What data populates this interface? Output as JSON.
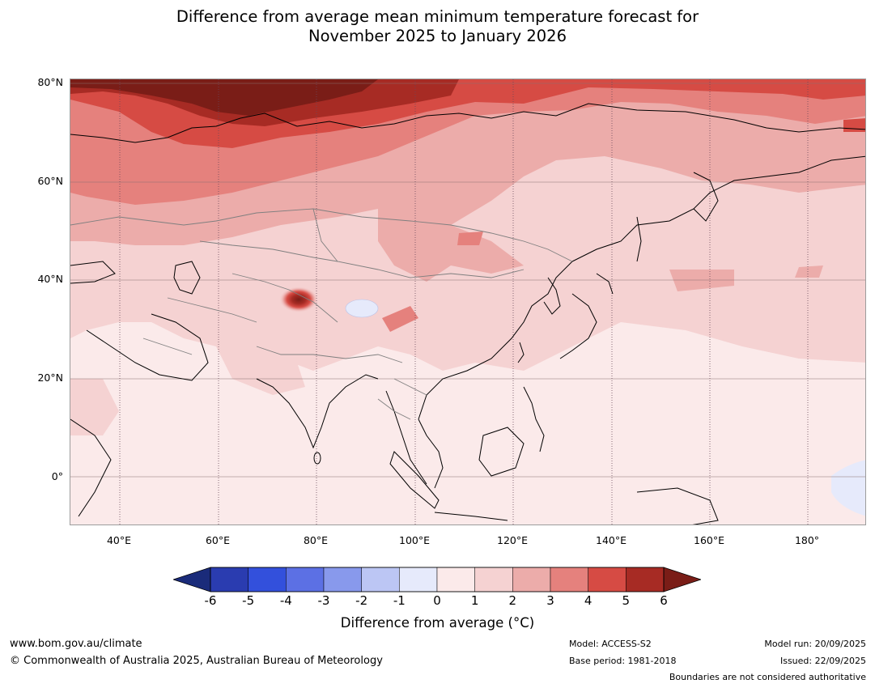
{
  "title": {
    "line1": "Difference from average mean minimum temperature forecast for",
    "line2": "November 2025 to January 2026"
  },
  "map": {
    "region": "Asia / Western Pacific",
    "lon_range": [
      30,
      192
    ],
    "lat_range": [
      -10,
      81
    ],
    "y_ticks": [
      "80°N",
      "60°N",
      "40°N",
      "20°N",
      "0°"
    ],
    "x_ticks": [
      "40°E",
      "60°E",
      "80°E",
      "100°E",
      "120°E",
      "140°E",
      "160°E",
      "180°"
    ],
    "gridlines": true,
    "anomaly_summary": {
      "arctic_siberia": "5 to 6+",
      "northern_russia": "2 to 4",
      "central_asia_china_mongolia": "1 to 3",
      "tibet_hotspot": "6+",
      "india_se_asia_pacific": "0 to 1",
      "tibet_cool_patch": "-1 to 0",
      "east_equatorial_pacific": "-1 to 0"
    }
  },
  "colorbar": {
    "labels": [
      "-6",
      "-5",
      "-4",
      "-3",
      "-2",
      "-1",
      "0",
      "1",
      "2",
      "3",
      "4",
      "5",
      "6"
    ],
    "colors": [
      "#1a2b7a",
      "#2a3cb0",
      "#3350dc",
      "#5c70e4",
      "#8899ec",
      "#bcc6f4",
      "#e6eafb",
      "#fbeaea",
      "#f5d2d2",
      "#ecacaa",
      "#e5817d",
      "#d64b44",
      "#a72b24",
      "#7a1d17"
    ],
    "extend": "both",
    "title": "Difference from average (°C)"
  },
  "footer": {
    "website": "www.bom.gov.au/climate",
    "copyright": "© Commonwealth of Australia 2025, Australian Bureau of Meteorology",
    "model": "Model: ACCESS-S2",
    "base_period": "Base period: 1981-2018",
    "model_run": "Model run: 20/09/2025",
    "issued": "Issued: 22/09/2025",
    "disclaimer": "Boundaries are not considered authoritative"
  }
}
